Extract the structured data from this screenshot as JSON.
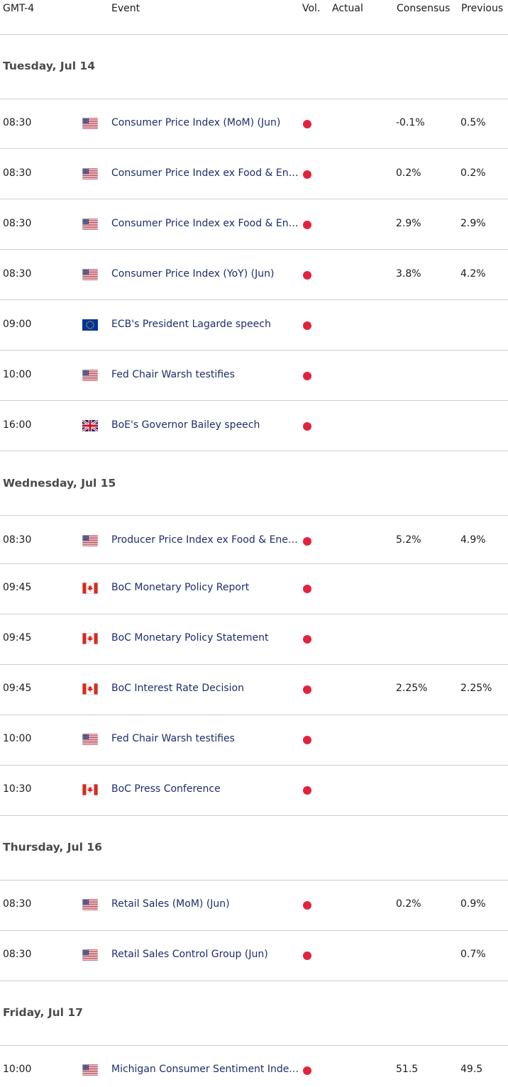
{
  "header": {
    "timezone": "GMT-4",
    "event": "Event",
    "vol": "Vol.",
    "actual": "Actual",
    "consensus": "Consensus",
    "previous": "Previous"
  },
  "colors": {
    "volume_dot": "#e2233d",
    "event_text": "#1e2d6b",
    "divider": "#cfcfcf"
  },
  "days": [
    {
      "label": "Tuesday, Jul 14"
    },
    {
      "label": "Wednesday, Jul 15"
    },
    {
      "label": "Thursday, Jul 16"
    },
    {
      "label": "Friday, Jul 17"
    }
  ],
  "rows": [
    {
      "time": "08:30",
      "flag": "us-flag-icon",
      "event": "Consumer Price Index (MoM) (Jun)",
      "actual": "",
      "consensus": "-0.1%",
      "previous": "0.5%"
    },
    {
      "time": "08:30",
      "flag": "us-flag-icon",
      "event": "Consumer Price Index ex Food & Energy (MoM) (Jun)",
      "actual": "",
      "consensus": "0.2%",
      "previous": "0.2%"
    },
    {
      "time": "08:30",
      "flag": "us-flag-icon",
      "event": "Consumer Price Index ex Food & Energy (YoY) (Jun)",
      "actual": "",
      "consensus": "2.9%",
      "previous": "2.9%"
    },
    {
      "time": "08:30",
      "flag": "us-flag-icon",
      "event": "Consumer Price Index (YoY) (Jun)",
      "actual": "",
      "consensus": "3.8%",
      "previous": "4.2%"
    },
    {
      "time": "09:00",
      "flag": "eu-flag-icon",
      "event": "ECB's President Lagarde speech",
      "actual": "",
      "consensus": "",
      "previous": ""
    },
    {
      "time": "10:00",
      "flag": "us-flag-icon",
      "event": "Fed Chair Warsh testifies",
      "actual": "",
      "consensus": "",
      "previous": ""
    },
    {
      "time": "16:00",
      "flag": "uk-flag-icon",
      "event": "BoE's Governor Bailey speech",
      "actual": "",
      "consensus": "",
      "previous": ""
    },
    {
      "time": "08:30",
      "flag": "us-flag-icon",
      "event": "Producer Price Index ex Food & Energy (YoY) (Jun)",
      "actual": "",
      "consensus": "5.2%",
      "previous": "4.9%"
    },
    {
      "time": "09:45",
      "flag": "ca-flag-icon",
      "event": "BoC Monetary Policy Report",
      "actual": "",
      "consensus": "",
      "previous": ""
    },
    {
      "time": "09:45",
      "flag": "ca-flag-icon",
      "event": "BoC Monetary Policy Statement",
      "actual": "",
      "consensus": "",
      "previous": ""
    },
    {
      "time": "09:45",
      "flag": "ca-flag-icon",
      "event": "BoC Interest Rate Decision",
      "actual": "",
      "consensus": "2.25%",
      "previous": "2.25%"
    },
    {
      "time": "10:00",
      "flag": "us-flag-icon",
      "event": "Fed Chair Warsh testifies",
      "actual": "",
      "consensus": "",
      "previous": ""
    },
    {
      "time": "10:30",
      "flag": "ca-flag-icon",
      "event": "BoC Press Conference",
      "actual": "",
      "consensus": "",
      "previous": ""
    },
    {
      "time": "08:30",
      "flag": "us-flag-icon",
      "event": "Retail Sales (MoM) (Jun)",
      "actual": "",
      "consensus": "0.2%",
      "previous": "0.9%"
    },
    {
      "time": "08:30",
      "flag": "us-flag-icon",
      "event": "Retail Sales Control Group (Jun)",
      "actual": "",
      "consensus": "",
      "previous": "0.7%"
    },
    {
      "time": "10:00",
      "flag": "us-flag-icon",
      "event": "Michigan Consumer Sentiment Index (Prel)",
      "actual": "",
      "consensus": "51.5",
      "previous": "49.5"
    }
  ]
}
